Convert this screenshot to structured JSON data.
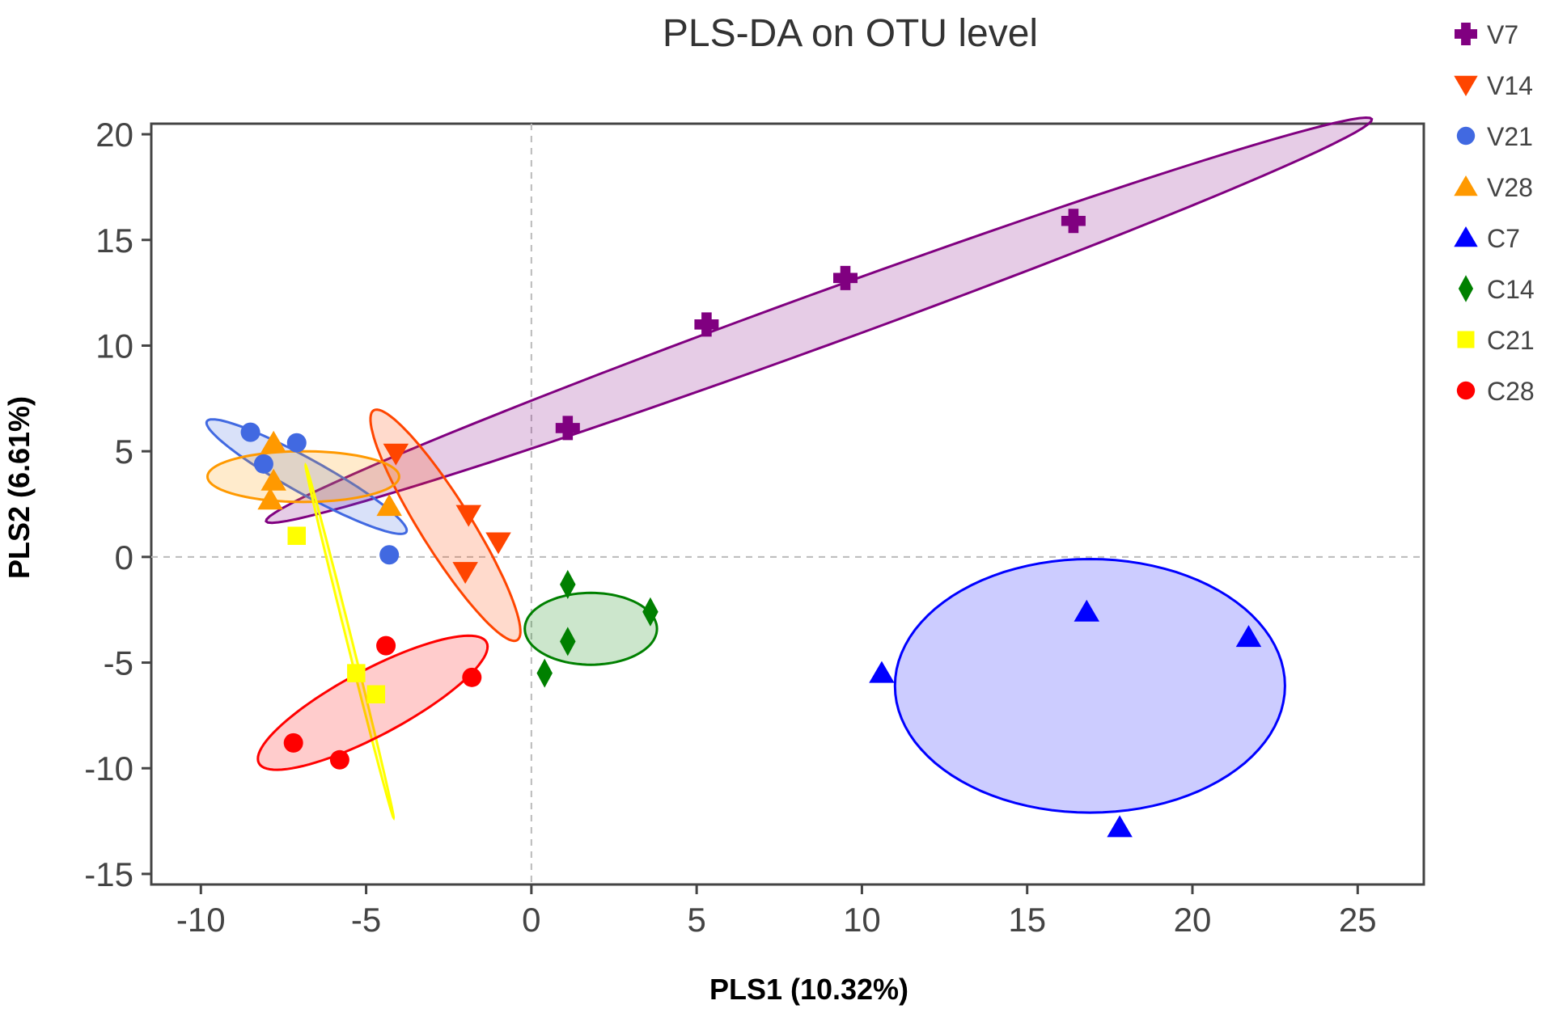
{
  "chart_data": {
    "type": "scatter",
    "title": "PLS-DA on OTU level",
    "xlabel": "PLS1 (10.32%)",
    "ylabel": "PLS2 (6.61%)",
    "xlim": [
      -11.5,
      27
    ],
    "ylim": [
      -15.5,
      20.5
    ],
    "xticks": [
      -10,
      -5,
      0,
      5,
      10,
      15,
      20,
      25
    ],
    "yticks": [
      20,
      15,
      10,
      5,
      0,
      -5,
      -10,
      -15
    ],
    "xtick_labels": [
      "-10",
      "-5",
      "0",
      "5",
      "10",
      "15",
      "20",
      "25"
    ],
    "ytick_labels": [
      "20",
      "15",
      "10",
      "5",
      "0",
      "-5",
      "-10",
      "-15"
    ],
    "reference_lines": {
      "x": 0,
      "y": 0
    },
    "series": [
      {
        "name": "V7",
        "color": "#800080",
        "marker": "plus",
        "points": [
          [
            1.1,
            6.1
          ],
          [
            5.3,
            11.0
          ],
          [
            9.5,
            13.2
          ],
          [
            16.4,
            15.9
          ]
        ],
        "ellipse": {
          "cx": 8.7,
          "cy": 11.2,
          "rx": 17.8,
          "ry": 1.25,
          "angle": 20
        }
      },
      {
        "name": "V14",
        "color": "#FF4500",
        "marker": "triangle-down",
        "points": [
          [
            -4.1,
            4.9
          ],
          [
            -1.9,
            2.0
          ],
          [
            -1.0,
            0.7
          ],
          [
            -2.0,
            -0.7
          ]
        ],
        "ellipse": {
          "cx": -2.6,
          "cy": 1.5,
          "rx": 4.1,
          "ry": 1.2,
          "angle": -58
        }
      },
      {
        "name": "V21",
        "color": "#4169E1",
        "marker": "circle",
        "points": [
          [
            -8.5,
            5.9
          ],
          [
            -8.1,
            4.4
          ],
          [
            -7.1,
            5.4
          ],
          [
            -4.3,
            0.1
          ]
        ],
        "ellipse": {
          "cx": -6.8,
          "cy": 3.8,
          "rx": 3.45,
          "ry": 0.82,
          "angle": -29
        }
      },
      {
        "name": "V28",
        "color": "#FF9900",
        "marker": "triangle",
        "points": [
          [
            -7.8,
            5.4
          ],
          [
            -7.8,
            3.6
          ],
          [
            -7.9,
            2.7
          ],
          [
            -4.3,
            2.4
          ]
        ],
        "ellipse": {
          "cx": -6.9,
          "cy": 3.8,
          "rx": 2.9,
          "ry": 1.2,
          "angle": 0
        }
      },
      {
        "name": "C7",
        "color": "#0000FF",
        "marker": "triangle",
        "points": [
          [
            10.6,
            -5.5
          ],
          [
            16.8,
            -2.6
          ],
          [
            21.7,
            -3.8
          ],
          [
            17.8,
            -12.8
          ]
        ],
        "ellipse": {
          "cx": 16.9,
          "cy": -6.1,
          "rx": 5.9,
          "ry": 6.0,
          "angle": 0
        }
      },
      {
        "name": "C14",
        "color": "#008000",
        "marker": "diamond",
        "points": [
          [
            1.1,
            -1.3
          ],
          [
            3.6,
            -2.6
          ],
          [
            1.1,
            -4.0
          ],
          [
            0.4,
            -5.5
          ]
        ],
        "ellipse": {
          "cx": 1.8,
          "cy": -3.4,
          "rx": 2.0,
          "ry": 1.7,
          "angle": 0
        }
      },
      {
        "name": "C21",
        "color": "#FFFF00",
        "marker": "square",
        "points": [
          [
            -7.1,
            1.0
          ],
          [
            -5.3,
            -5.5
          ],
          [
            -4.7,
            -6.5
          ]
        ],
        "ellipse": {
          "cx": -5.5,
          "cy": -4.0,
          "rx": 5.5,
          "ry": 0.12,
          "angle": -76
        }
      },
      {
        "name": "C28",
        "color": "#FF0000",
        "marker": "circle",
        "points": [
          [
            -4.4,
            -4.2
          ],
          [
            -1.8,
            -5.7
          ],
          [
            -7.2,
            -8.8
          ],
          [
            -5.8,
            -9.6
          ]
        ],
        "ellipse": {
          "cx": -4.8,
          "cy": -6.9,
          "rx": 3.9,
          "ry": 1.55,
          "angle": 28
        }
      }
    ]
  }
}
